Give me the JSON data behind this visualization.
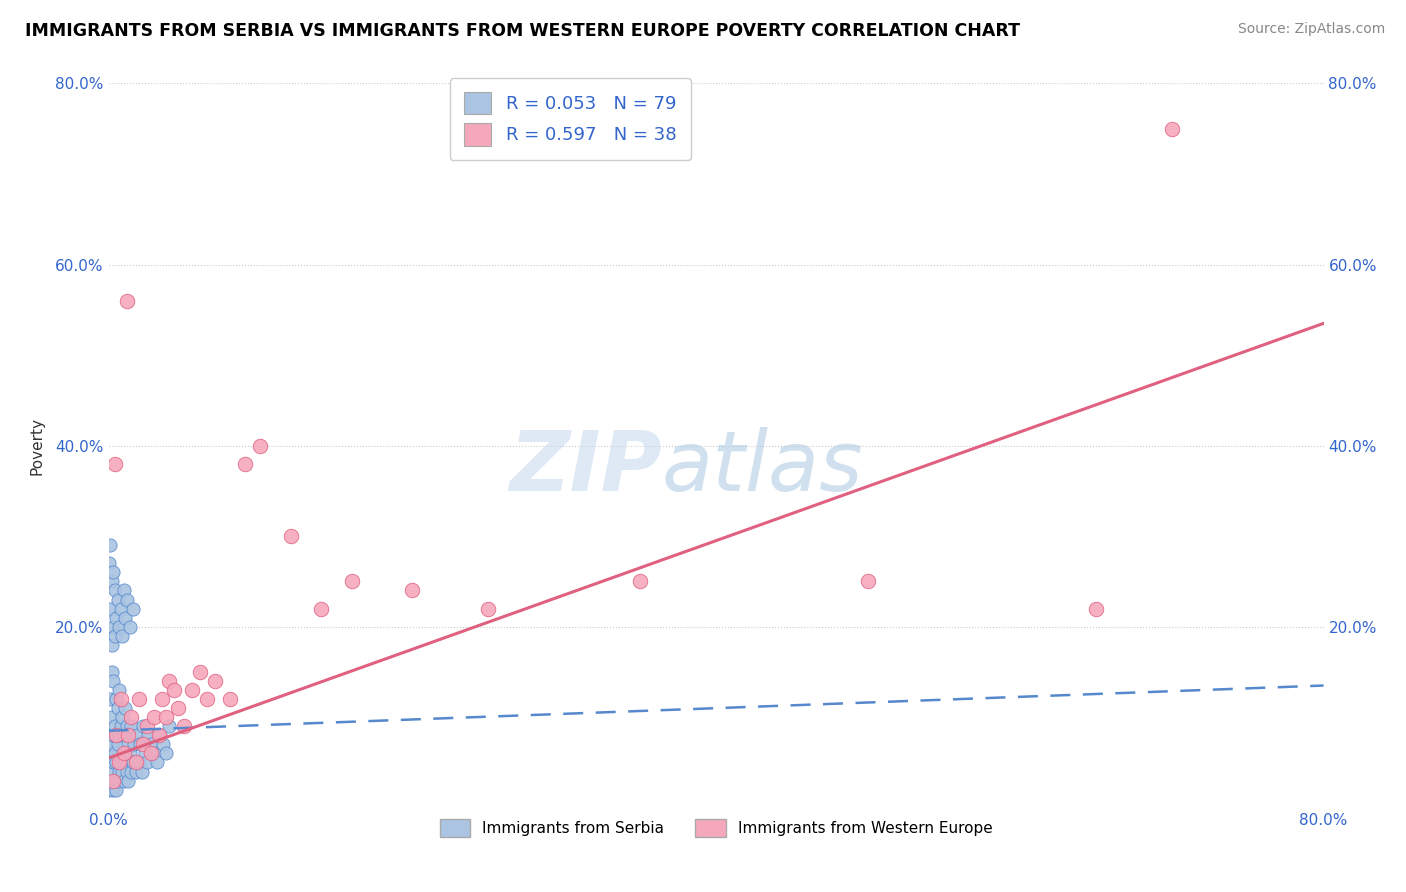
{
  "title": "IMMIGRANTS FROM SERBIA VS IMMIGRANTS FROM WESTERN EUROPE POVERTY CORRELATION CHART",
  "source": "Source: ZipAtlas.com",
  "ylabel": "Poverty",
  "serbia_R": "0.053",
  "serbia_N": "79",
  "western_R": "0.597",
  "western_N": "38",
  "serbia_color": "#aac4e2",
  "western_color": "#f5a8bc",
  "serbia_line_color": "#5588cc",
  "western_line_color": "#e06080",
  "ytick_vals": [
    0.0,
    0.2,
    0.4,
    0.6,
    0.8
  ],
  "xlim": [
    0.0,
    0.8
  ],
  "ylim": [
    0.0,
    0.8
  ],
  "serbia_x": [
    0.0,
    0.0,
    0.001,
    0.001,
    0.001,
    0.001,
    0.002,
    0.002,
    0.002,
    0.002,
    0.003,
    0.003,
    0.003,
    0.003,
    0.004,
    0.004,
    0.004,
    0.005,
    0.005,
    0.005,
    0.005,
    0.006,
    0.006,
    0.006,
    0.007,
    0.007,
    0.007,
    0.008,
    0.008,
    0.009,
    0.009,
    0.01,
    0.01,
    0.011,
    0.011,
    0.012,
    0.012,
    0.013,
    0.013,
    0.014,
    0.015,
    0.015,
    0.016,
    0.017,
    0.018,
    0.019,
    0.02,
    0.021,
    0.022,
    0.023,
    0.024,
    0.025,
    0.026,
    0.028,
    0.03,
    0.032,
    0.034,
    0.036,
    0.038,
    0.04,
    0.0,
    0.001,
    0.001,
    0.002,
    0.002,
    0.003,
    0.003,
    0.004,
    0.004,
    0.005,
    0.006,
    0.007,
    0.008,
    0.009,
    0.01,
    0.011,
    0.012,
    0.014,
    0.016
  ],
  "serbia_y": [
    0.02,
    0.05,
    0.03,
    0.06,
    0.08,
    0.12,
    0.04,
    0.07,
    0.1,
    0.15,
    0.02,
    0.05,
    0.08,
    0.14,
    0.03,
    0.06,
    0.09,
    0.02,
    0.05,
    0.08,
    0.12,
    0.03,
    0.07,
    0.11,
    0.04,
    0.08,
    0.13,
    0.05,
    0.09,
    0.04,
    0.1,
    0.03,
    0.08,
    0.05,
    0.11,
    0.04,
    0.09,
    0.03,
    0.07,
    0.06,
    0.04,
    0.09,
    0.05,
    0.07,
    0.04,
    0.08,
    0.05,
    0.07,
    0.04,
    0.09,
    0.06,
    0.05,
    0.08,
    0.07,
    0.06,
    0.05,
    0.08,
    0.07,
    0.06,
    0.09,
    0.27,
    0.22,
    0.29,
    0.18,
    0.25,
    0.2,
    0.26,
    0.19,
    0.24,
    0.21,
    0.23,
    0.2,
    0.22,
    0.19,
    0.24,
    0.21,
    0.23,
    0.2,
    0.22
  ],
  "western_x": [
    0.003,
    0.005,
    0.007,
    0.01,
    0.013,
    0.015,
    0.018,
    0.02,
    0.023,
    0.025,
    0.028,
    0.03,
    0.033,
    0.035,
    0.038,
    0.04,
    0.043,
    0.046,
    0.05,
    0.055,
    0.06,
    0.065,
    0.07,
    0.08,
    0.09,
    0.1,
    0.12,
    0.14,
    0.16,
    0.2,
    0.25,
    0.35,
    0.5,
    0.65,
    0.7,
    0.004,
    0.008,
    0.012
  ],
  "western_y": [
    0.03,
    0.08,
    0.05,
    0.06,
    0.08,
    0.1,
    0.05,
    0.12,
    0.07,
    0.09,
    0.06,
    0.1,
    0.08,
    0.12,
    0.1,
    0.14,
    0.13,
    0.11,
    0.09,
    0.13,
    0.15,
    0.12,
    0.14,
    0.12,
    0.38,
    0.4,
    0.3,
    0.22,
    0.25,
    0.24,
    0.22,
    0.25,
    0.25,
    0.22,
    0.75,
    0.38,
    0.12,
    0.56
  ],
  "serbia_trend_x": [
    0.0,
    0.8
  ],
  "serbia_trend_y": [
    0.085,
    0.135
  ],
  "western_trend_x": [
    0.0,
    0.8
  ],
  "western_trend_y": [
    0.055,
    0.535
  ]
}
